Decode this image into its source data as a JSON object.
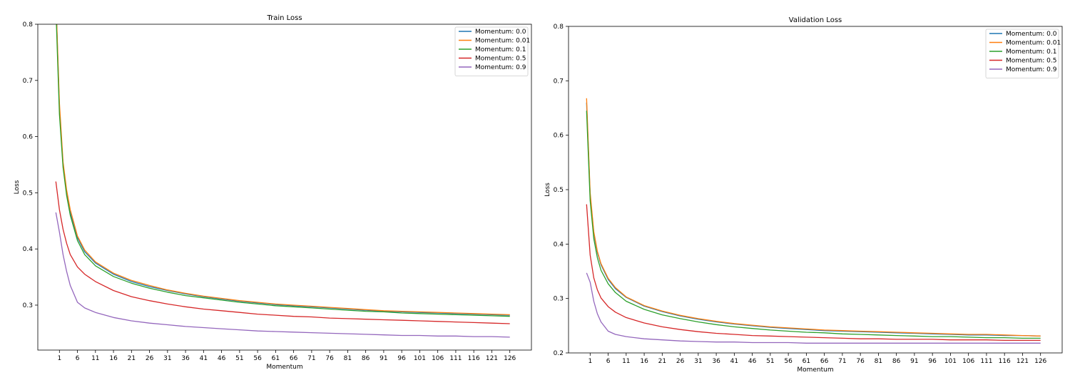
{
  "chart_data": [
    {
      "type": "line",
      "title": "Train Loss",
      "xlabel": "Momentum",
      "ylabel": "Loss",
      "x_ticks": [
        1,
        6,
        11,
        16,
        21,
        26,
        31,
        36,
        41,
        46,
        51,
        56,
        61,
        66,
        71,
        76,
        81,
        86,
        91,
        96,
        101,
        106,
        111,
        116,
        121,
        126
      ],
      "y_ticks": [
        0.3,
        0.4,
        0.5,
        0.6,
        0.7,
        0.8
      ],
      "xlim": [
        -5,
        132
      ],
      "ylim": [
        0.22,
        0.8
      ],
      "legend_position": "top-right",
      "series": [
        {
          "name": "Momentum: 0.0",
          "color": "#1f77b4",
          "x": [
            0,
            1,
            2,
            3,
            4,
            6,
            8,
            11,
            16,
            21,
            26,
            31,
            36,
            41,
            46,
            51,
            56,
            61,
            66,
            71,
            76,
            81,
            86,
            91,
            96,
            101,
            106,
            111,
            116,
            121,
            126
          ],
          "y": [
            0.85,
            0.65,
            0.55,
            0.5,
            0.465,
            0.42,
            0.395,
            0.375,
            0.355,
            0.342,
            0.333,
            0.326,
            0.32,
            0.315,
            0.311,
            0.307,
            0.304,
            0.301,
            0.299,
            0.297,
            0.295,
            0.293,
            0.291,
            0.289,
            0.288,
            0.287,
            0.286,
            0.285,
            0.284,
            0.283,
            0.282
          ]
        },
        {
          "name": "Momentum: 0.01",
          "color": "#ff7f0e",
          "x": [
            0,
            1,
            2,
            3,
            4,
            6,
            8,
            11,
            16,
            21,
            26,
            31,
            36,
            41,
            46,
            51,
            56,
            61,
            66,
            71,
            76,
            81,
            86,
            91,
            96,
            101,
            106,
            111,
            116,
            121,
            126
          ],
          "y": [
            0.85,
            0.66,
            0.555,
            0.505,
            0.47,
            0.423,
            0.398,
            0.377,
            0.357,
            0.344,
            0.335,
            0.327,
            0.321,
            0.316,
            0.312,
            0.308,
            0.305,
            0.302,
            0.3,
            0.298,
            0.296,
            0.294,
            0.292,
            0.29,
            0.289,
            0.288,
            0.287,
            0.286,
            0.285,
            0.284,
            0.283
          ]
        },
        {
          "name": "Momentum: 0.1",
          "color": "#2ca02c",
          "x": [
            0,
            1,
            2,
            3,
            4,
            6,
            8,
            11,
            16,
            21,
            26,
            31,
            36,
            41,
            46,
            51,
            56,
            61,
            66,
            71,
            76,
            81,
            86,
            91,
            96,
            101,
            106,
            111,
            116,
            121,
            126
          ],
          "y": [
            0.83,
            0.64,
            0.545,
            0.495,
            0.46,
            0.415,
            0.39,
            0.37,
            0.351,
            0.339,
            0.33,
            0.323,
            0.317,
            0.313,
            0.309,
            0.305,
            0.302,
            0.299,
            0.297,
            0.295,
            0.293,
            0.291,
            0.289,
            0.288,
            0.286,
            0.285,
            0.284,
            0.283,
            0.282,
            0.281,
            0.28
          ]
        },
        {
          "name": "Momentum: 0.5",
          "color": "#d62728",
          "x": [
            0,
            1,
            2,
            3,
            4,
            6,
            8,
            11,
            16,
            21,
            26,
            31,
            36,
            41,
            46,
            51,
            56,
            61,
            66,
            71,
            76,
            81,
            86,
            91,
            96,
            101,
            106,
            111,
            116,
            121,
            126
          ],
          "y": [
            0.52,
            0.47,
            0.435,
            0.41,
            0.39,
            0.368,
            0.355,
            0.342,
            0.326,
            0.315,
            0.308,
            0.302,
            0.297,
            0.293,
            0.29,
            0.287,
            0.284,
            0.282,
            0.28,
            0.279,
            0.277,
            0.276,
            0.275,
            0.274,
            0.273,
            0.272,
            0.271,
            0.27,
            0.269,
            0.268,
            0.267
          ]
        },
        {
          "name": "Momentum: 0.9",
          "color": "#9467bd",
          "x": [
            0,
            1,
            2,
            3,
            4,
            6,
            8,
            11,
            16,
            21,
            26,
            31,
            36,
            41,
            46,
            51,
            56,
            61,
            66,
            71,
            76,
            81,
            86,
            91,
            96,
            101,
            106,
            111,
            116,
            121,
            126
          ],
          "y": [
            0.465,
            0.43,
            0.39,
            0.36,
            0.335,
            0.305,
            0.295,
            0.287,
            0.278,
            0.272,
            0.268,
            0.265,
            0.262,
            0.26,
            0.258,
            0.256,
            0.254,
            0.253,
            0.252,
            0.251,
            0.25,
            0.249,
            0.248,
            0.247,
            0.246,
            0.246,
            0.245,
            0.245,
            0.244,
            0.244,
            0.243
          ]
        }
      ]
    },
    {
      "type": "line",
      "title": "Validation Loss",
      "xlabel": "Momentum",
      "ylabel": "Loss",
      "x_ticks": [
        1,
        6,
        11,
        16,
        21,
        26,
        31,
        36,
        41,
        46,
        51,
        56,
        61,
        66,
        71,
        76,
        81,
        86,
        91,
        96,
        101,
        106,
        111,
        116,
        121,
        126
      ],
      "y_ticks": [
        0.2,
        0.3,
        0.4,
        0.5,
        0.6,
        0.7,
        0.8
      ],
      "xlim": [
        -5,
        132
      ],
      "ylim": [
        0.2,
        0.8
      ],
      "legend_position": "top-right",
      "series": [
        {
          "name": "Momentum: 0.0",
          "color": "#1f77b4",
          "x": [
            0,
            1,
            2,
            3,
            4,
            6,
            8,
            11,
            16,
            21,
            26,
            31,
            36,
            41,
            46,
            51,
            56,
            61,
            66,
            71,
            76,
            81,
            86,
            91,
            96,
            101,
            106,
            111,
            116,
            121,
            126
          ],
          "y": [
            0.66,
            0.49,
            0.42,
            0.385,
            0.362,
            0.335,
            0.318,
            0.302,
            0.286,
            0.276,
            0.268,
            0.262,
            0.257,
            0.253,
            0.25,
            0.247,
            0.245,
            0.243,
            0.241,
            0.24,
            0.239,
            0.238,
            0.237,
            0.236,
            0.235,
            0.234,
            0.233,
            0.233,
            0.232,
            0.232,
            0.231
          ]
        },
        {
          "name": "Momentum: 0.01",
          "color": "#ff7f0e",
          "x": [
            0,
            1,
            2,
            3,
            4,
            6,
            8,
            11,
            16,
            21,
            26,
            31,
            36,
            41,
            46,
            51,
            56,
            61,
            66,
            71,
            76,
            81,
            86,
            91,
            96,
            101,
            106,
            111,
            116,
            121,
            126
          ],
          "y": [
            0.668,
            0.495,
            0.423,
            0.387,
            0.364,
            0.337,
            0.32,
            0.303,
            0.287,
            0.277,
            0.269,
            0.263,
            0.258,
            0.254,
            0.251,
            0.248,
            0.246,
            0.244,
            0.242,
            0.241,
            0.24,
            0.239,
            0.238,
            0.237,
            0.236,
            0.235,
            0.234,
            0.234,
            0.233,
            0.232,
            0.231
          ]
        },
        {
          "name": "Momentum: 0.1",
          "color": "#2ca02c",
          "x": [
            0,
            1,
            2,
            3,
            4,
            6,
            8,
            11,
            16,
            21,
            26,
            31,
            36,
            41,
            46,
            51,
            56,
            61,
            66,
            71,
            76,
            81,
            86,
            91,
            96,
            101,
            106,
            111,
            116,
            121,
            126
          ],
          "y": [
            0.645,
            0.48,
            0.41,
            0.375,
            0.352,
            0.327,
            0.311,
            0.295,
            0.28,
            0.27,
            0.263,
            0.257,
            0.252,
            0.248,
            0.245,
            0.242,
            0.24,
            0.238,
            0.237,
            0.235,
            0.234,
            0.233,
            0.232,
            0.231,
            0.23,
            0.23,
            0.229,
            0.228,
            0.228,
            0.227,
            0.227
          ]
        },
        {
          "name": "Momentum: 0.5",
          "color": "#d62728",
          "x": [
            0,
            1,
            2,
            3,
            4,
            6,
            8,
            11,
            16,
            21,
            26,
            31,
            36,
            41,
            46,
            51,
            56,
            61,
            66,
            71,
            76,
            81,
            86,
            91,
            96,
            101,
            106,
            111,
            116,
            121,
            126
          ],
          "y": [
            0.473,
            0.38,
            0.338,
            0.316,
            0.301,
            0.285,
            0.275,
            0.265,
            0.255,
            0.248,
            0.243,
            0.239,
            0.236,
            0.234,
            0.232,
            0.231,
            0.23,
            0.229,
            0.228,
            0.227,
            0.226,
            0.226,
            0.225,
            0.225,
            0.225,
            0.224,
            0.224,
            0.224,
            0.223,
            0.223,
            0.223
          ]
        },
        {
          "name": "Momentum: 0.9",
          "color": "#9467bd",
          "x": [
            0,
            1,
            2,
            3,
            4,
            6,
            8,
            11,
            16,
            21,
            26,
            31,
            36,
            41,
            46,
            51,
            56,
            61,
            66,
            71,
            76,
            81,
            86,
            91,
            96,
            101,
            106,
            111,
            116,
            121,
            126
          ],
          "y": [
            0.347,
            0.33,
            0.295,
            0.272,
            0.257,
            0.24,
            0.234,
            0.23,
            0.226,
            0.224,
            0.222,
            0.221,
            0.22,
            0.22,
            0.219,
            0.219,
            0.219,
            0.218,
            0.218,
            0.218,
            0.218,
            0.218,
            0.218,
            0.218,
            0.218,
            0.218,
            0.218,
            0.218,
            0.218,
            0.218,
            0.218
          ]
        }
      ]
    }
  ]
}
